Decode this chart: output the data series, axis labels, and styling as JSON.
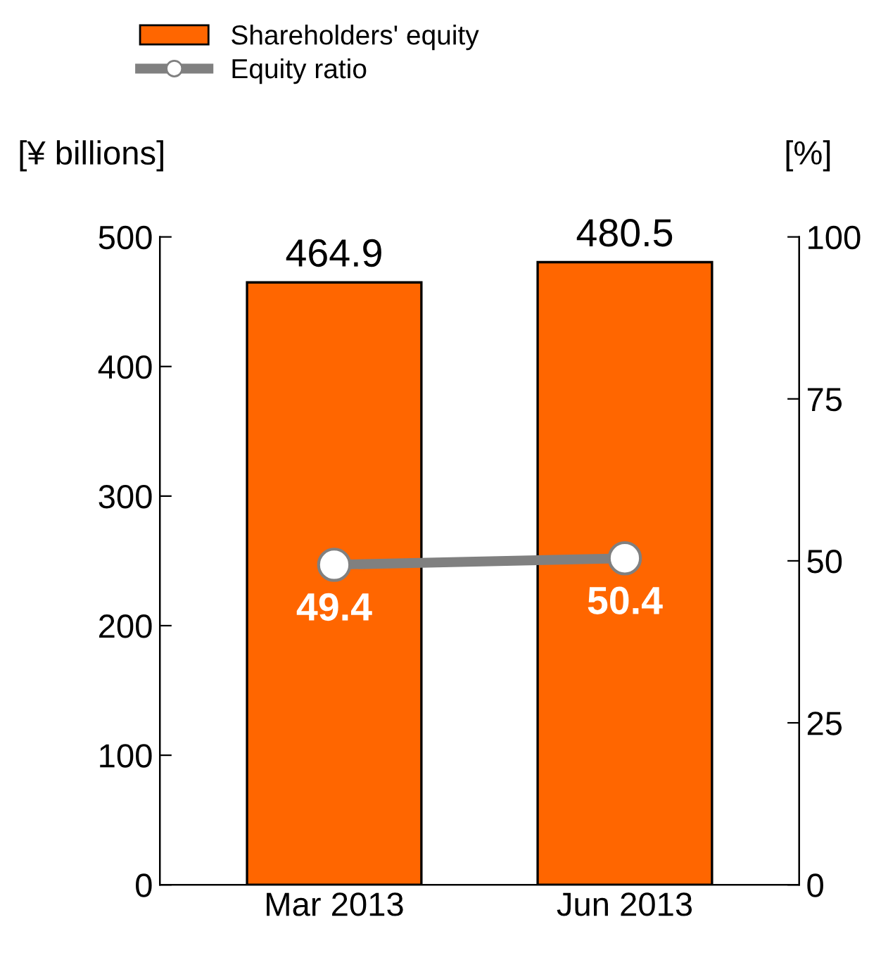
{
  "chart_data": {
    "type": "bar",
    "categories": [
      "Mar 2013",
      "Jun 2013"
    ],
    "series": [
      {
        "name": "Shareholders' equity",
        "color": "#ff6600",
        "values": [
          464.9,
          480.5
        ]
      },
      {
        "name": "Equity ratio",
        "type": "line",
        "axis": "y2",
        "color": "#808080",
        "marker": "circle",
        "values": [
          49.4,
          50.4
        ]
      }
    ],
    "ylabel": "[¥ billions]",
    "y2label": "[%]",
    "ylim": [
      0,
      500
    ],
    "yticks": [
      0,
      100,
      200,
      300,
      400,
      500
    ],
    "y2lim": [
      0,
      100
    ],
    "y2ticks": [
      0,
      25,
      50,
      75,
      100
    ],
    "data_labels": true,
    "grid": false,
    "legend": "top left"
  }
}
